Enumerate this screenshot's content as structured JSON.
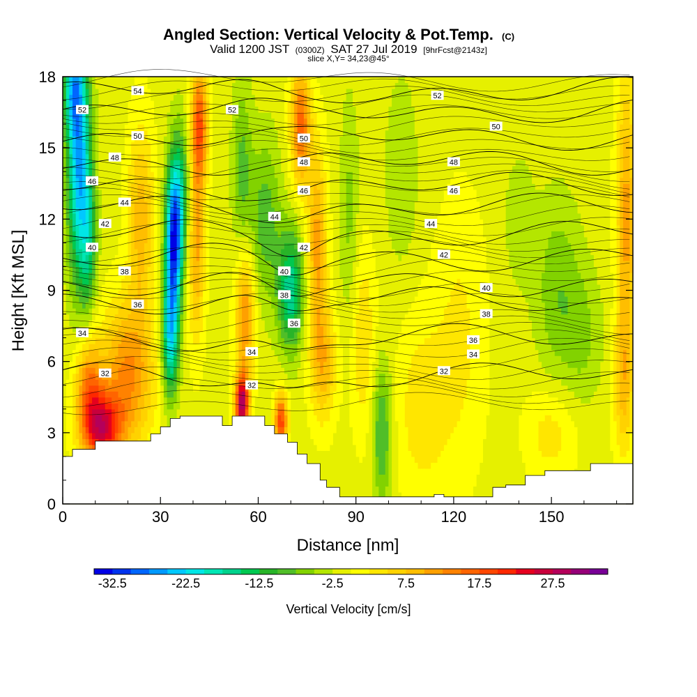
{
  "chart_data": {
    "type": "heatmap",
    "title": "Angled Section: Vertical Velocity & Pot.Temp.",
    "title_suffix": "(C)",
    "subtitle_pre": "Valid 1200 JST",
    "subtitle_zone": "(0300Z)",
    "subtitle_date": "SAT 27 Jul 2019",
    "subtitle_fcst": "[9hrFcst@2143z]",
    "slice_label": "slice X,Y= 34,23@45°",
    "xlabel": "Distance [nm]",
    "ylabel": "Height [Kft MSL]",
    "xlim": [
      0,
      175
    ],
    "ylim": [
      0,
      18
    ],
    "x_ticks": [
      0,
      30,
      60,
      90,
      120,
      150
    ],
    "y_ticks": [
      0,
      3,
      6,
      9,
      12,
      15,
      18
    ],
    "colorbar": {
      "label": "Vertical Velocity [cm/s]",
      "tick_labels": [
        "-32.5",
        "-22.5",
        "-12.5",
        "-2.5",
        "7.5",
        "17.5",
        "27.5"
      ],
      "tick_values": [
        -32.5,
        -22.5,
        -12.5,
        -2.5,
        7.5,
        17.5,
        27.5
      ],
      "range": [
        -35,
        35
      ],
      "step": 2.5,
      "colors": [
        "#0000e6",
        "#0033ee",
        "#0066ff",
        "#0099ff",
        "#00c8ff",
        "#00e6e6",
        "#00e6b4",
        "#00d28c",
        "#00c850",
        "#28b428",
        "#50be28",
        "#82d200",
        "#b4e600",
        "#e6f000",
        "#ffff00",
        "#ffe600",
        "#ffd200",
        "#ffbe00",
        "#ffa000",
        "#ff8200",
        "#ff6400",
        "#ff4600",
        "#ff2800",
        "#e6001e",
        "#c8003c",
        "#b4005a",
        "#960078",
        "#780096"
      ]
    },
    "theta_contours": [
      {
        "value": 32,
        "label": "32",
        "height": 5.4
      },
      {
        "value": 34,
        "label": "34",
        "height": 7.0
      },
      {
        "value": 36,
        "label": "36",
        "height": 8.6
      },
      {
        "value": 38,
        "label": "38",
        "height": 9.3
      },
      {
        "value": 40,
        "label": "40",
        "height": 10.4
      },
      {
        "value": 42,
        "label": "42",
        "height": 11.4
      },
      {
        "value": 44,
        "label": "44",
        "height": 12.5
      },
      {
        "value": 46,
        "label": "46",
        "height": 13.4
      },
      {
        "value": 48,
        "label": "48",
        "height": 14.4
      },
      {
        "value": 50,
        "label": "50",
        "height": 15.5
      },
      {
        "value": 52,
        "label": "52",
        "height": 16.6
      },
      {
        "value": 54,
        "label": "54",
        "height": 17.4
      }
    ],
    "theta_labels": [
      {
        "text": "54",
        "x": 23,
        "y": 17.4
      },
      {
        "text": "52",
        "x": 6,
        "y": 16.6
      },
      {
        "text": "52",
        "x": 52,
        "y": 16.6
      },
      {
        "text": "52",
        "x": 115,
        "y": 17.2
      },
      {
        "text": "50",
        "x": 23,
        "y": 15.5
      },
      {
        "text": "50",
        "x": 74,
        "y": 15.4
      },
      {
        "text": "50",
        "x": 133,
        "y": 15.9
      },
      {
        "text": "48",
        "x": 16,
        "y": 14.6
      },
      {
        "text": "48",
        "x": 74,
        "y": 14.4
      },
      {
        "text": "48",
        "x": 120,
        "y": 14.4
      },
      {
        "text": "46",
        "x": 9,
        "y": 13.6
      },
      {
        "text": "46",
        "x": 74,
        "y": 13.2
      },
      {
        "text": "46",
        "x": 120,
        "y": 13.2
      },
      {
        "text": "44",
        "x": 19,
        "y": 12.7
      },
      {
        "text": "44",
        "x": 65,
        "y": 12.1
      },
      {
        "text": "44",
        "x": 113,
        "y": 11.8
      },
      {
        "text": "42",
        "x": 13,
        "y": 11.8
      },
      {
        "text": "42",
        "x": 74,
        "y": 10.8
      },
      {
        "text": "42",
        "x": 117,
        "y": 10.5
      },
      {
        "text": "40",
        "x": 9,
        "y": 10.8
      },
      {
        "text": "40",
        "x": 68,
        "y": 9.8
      },
      {
        "text": "40",
        "x": 130,
        "y": 9.1
      },
      {
        "text": "38",
        "x": 19,
        "y": 9.8
      },
      {
        "text": "38",
        "x": 68,
        "y": 8.8
      },
      {
        "text": "38",
        "x": 130,
        "y": 8.0
      },
      {
        "text": "36",
        "x": 23,
        "y": 8.4
      },
      {
        "text": "36",
        "x": 71,
        "y": 7.6
      },
      {
        "text": "36",
        "x": 126,
        "y": 6.9
      },
      {
        "text": "34",
        "x": 6,
        "y": 7.2
      },
      {
        "text": "34",
        "x": 58,
        "y": 6.4
      },
      {
        "text": "34",
        "x": 126,
        "y": 6.3
      },
      {
        "text": "32",
        "x": 13,
        "y": 5.5
      },
      {
        "text": "32",
        "x": 58,
        "y": 5.0
      },
      {
        "text": "32",
        "x": 117,
        "y": 5.6
      }
    ],
    "terrain": [
      [
        0,
        2.0
      ],
      [
        3,
        2.0
      ],
      [
        3,
        2.3
      ],
      [
        10,
        2.3
      ],
      [
        10,
        2.65
      ],
      [
        27,
        2.65
      ],
      [
        27,
        2.95
      ],
      [
        30,
        2.95
      ],
      [
        30,
        3.25
      ],
      [
        33,
        3.25
      ],
      [
        33,
        3.6
      ],
      [
        36,
        3.6
      ],
      [
        36,
        3.7
      ],
      [
        49,
        3.7
      ],
      [
        49,
        3.3
      ],
      [
        52,
        3.3
      ],
      [
        52,
        3.7
      ],
      [
        62,
        3.7
      ],
      [
        62,
        3.3
      ],
      [
        65,
        3.3
      ],
      [
        65,
        2.95
      ],
      [
        69,
        2.95
      ],
      [
        69,
        2.6
      ],
      [
        72,
        2.6
      ],
      [
        72,
        2.1
      ],
      [
        75,
        2.1
      ],
      [
        75,
        1.7
      ],
      [
        79,
        1.7
      ],
      [
        79,
        1.0
      ],
      [
        81,
        1.0
      ],
      [
        81,
        0.7
      ],
      [
        85,
        0.7
      ],
      [
        85,
        0.3
      ],
      [
        114,
        0.3
      ],
      [
        114,
        0.4
      ],
      [
        117,
        0.4
      ],
      [
        117,
        0.3
      ],
      [
        132,
        0.3
      ],
      [
        132,
        0.7
      ],
      [
        136,
        0.7
      ],
      [
        136,
        0.8
      ],
      [
        142,
        0.8
      ],
      [
        142,
        1.2
      ],
      [
        148,
        1.2
      ],
      [
        148,
        1.4
      ],
      [
        162,
        1.4
      ],
      [
        162,
        1.7
      ],
      [
        175,
        1.7
      ]
    ],
    "vertical_velocity_field": {
      "background": -1.0,
      "features": [
        {
          "x": 5,
          "y": 14.5,
          "sx": 3.5,
          "sy": 5,
          "w": -24
        },
        {
          "x": 3,
          "y": 17.5,
          "sx": 3,
          "sy": 2,
          "w": -14
        },
        {
          "x": 8,
          "y": 11,
          "sx": 2.5,
          "sy": 3,
          "w": -10
        },
        {
          "x": 34,
          "y": 11,
          "sx": 2.5,
          "sy": 3,
          "w": -28
        },
        {
          "x": 33,
          "y": 7,
          "sx": 2.5,
          "sy": 2.5,
          "w": -20
        },
        {
          "x": 36,
          "y": 13,
          "sx": 3,
          "sy": 3,
          "w": -12
        },
        {
          "x": 70,
          "y": 9,
          "sx": 4,
          "sy": 2.5,
          "w": -16
        },
        {
          "x": 62,
          "y": 12,
          "sx": 5,
          "sy": 3.5,
          "w": -8
        },
        {
          "x": 55,
          "y": 14,
          "sx": 3,
          "sy": 4,
          "w": -7
        },
        {
          "x": 98,
          "y": 3,
          "sx": 3,
          "sy": 3,
          "w": -10
        },
        {
          "x": 88,
          "y": 12,
          "sx": 3,
          "sy": 5,
          "w": -5
        },
        {
          "x": 104,
          "y": 14,
          "sx": 5,
          "sy": 4,
          "w": -4
        },
        {
          "x": 152,
          "y": 9,
          "sx": 7,
          "sy": 4,
          "w": -6
        },
        {
          "x": 160,
          "y": 7,
          "sx": 6,
          "sy": 3,
          "w": -4
        },
        {
          "x": 140,
          "y": 12,
          "sx": 5,
          "sy": 3,
          "w": -3
        },
        {
          "x": 12,
          "y": 3.2,
          "sx": 6,
          "sy": 1.5,
          "w": 24
        },
        {
          "x": 20,
          "y": 5.5,
          "sx": 8,
          "sy": 3,
          "w": 14
        },
        {
          "x": 8,
          "y": 5,
          "sx": 4,
          "sy": 2,
          "w": 14
        },
        {
          "x": 24,
          "y": 12,
          "sx": 4,
          "sy": 4,
          "w": 10
        },
        {
          "x": 42,
          "y": 16,
          "sx": 2.5,
          "sy": 2.5,
          "w": 18
        },
        {
          "x": 41,
          "y": 11,
          "sx": 2.5,
          "sy": 4,
          "w": 12
        },
        {
          "x": 55,
          "y": 4.2,
          "sx": 2,
          "sy": 1.2,
          "w": 30
        },
        {
          "x": 56,
          "y": 8,
          "sx": 3,
          "sy": 3,
          "w": 14
        },
        {
          "x": 67,
          "y": 3.5,
          "sx": 2,
          "sy": 1.2,
          "w": 20
        },
        {
          "x": 73,
          "y": 16,
          "sx": 3,
          "sy": 2.5,
          "w": 17
        },
        {
          "x": 78,
          "y": 11,
          "sx": 3,
          "sy": 4,
          "w": 12
        },
        {
          "x": 80,
          "y": 6,
          "sx": 4,
          "sy": 2.5,
          "w": 10
        },
        {
          "x": 92,
          "y": 7,
          "sx": 4,
          "sy": 4,
          "w": 6
        },
        {
          "x": 110,
          "y": 4,
          "sx": 8,
          "sy": 4,
          "w": 5
        },
        {
          "x": 122,
          "y": 7,
          "sx": 8,
          "sy": 6,
          "w": 4
        },
        {
          "x": 150,
          "y": 3,
          "sx": 8,
          "sy": 2,
          "w": 5
        },
        {
          "x": 173,
          "y": 12,
          "sx": 3,
          "sy": 6,
          "w": 12
        },
        {
          "x": 172,
          "y": 5,
          "sx": 3,
          "sy": 3,
          "w": 8
        }
      ]
    }
  }
}
